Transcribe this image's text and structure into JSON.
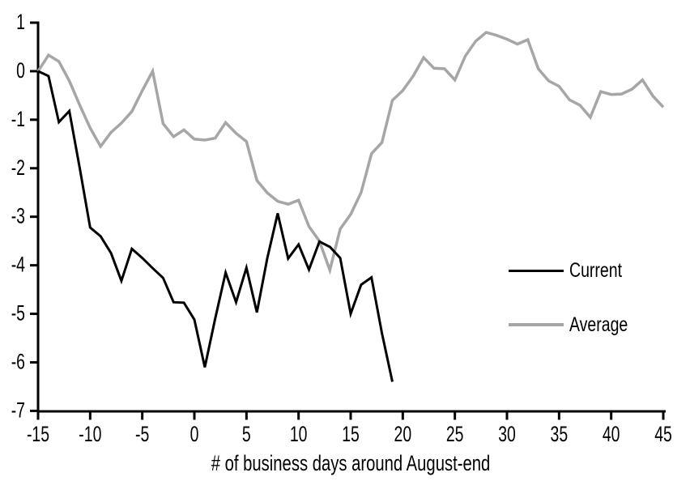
{
  "chart_data": {
    "type": "line",
    "title": "",
    "xlabel": "# of business days around August-end",
    "ylabel": "",
    "xlim": [
      -15,
      45
    ],
    "ylim": [
      -7,
      1
    ],
    "x_ticks": [
      -15,
      -10,
      -5,
      0,
      5,
      10,
      15,
      20,
      25,
      30,
      35,
      40,
      45
    ],
    "y_ticks": [
      1,
      0,
      -1,
      -2,
      -3,
      -4,
      -5,
      -6,
      -7
    ],
    "grid": false,
    "legend_position": "right-middle",
    "axis_color": "#000000",
    "series": [
      {
        "name": "Current",
        "color": "#000000",
        "x": [
          -15,
          -14,
          -13,
          -12,
          -11,
          -10,
          -9,
          -8,
          -7,
          -6,
          -5,
          -4,
          -3,
          -2,
          -1,
          0,
          1,
          2,
          3,
          4,
          5,
          6,
          7,
          8,
          9,
          10,
          11,
          12,
          13,
          14,
          15,
          16,
          17,
          18,
          19
        ],
        "values": [
          0,
          -0.1,
          -1.05,
          -0.82,
          -2,
          -3.22,
          -3.4,
          -3.75,
          -4.32,
          -3.66,
          -3.85,
          -4.06,
          -4.26,
          -4.76,
          -4.77,
          -5.12,
          -6.1,
          -5.1,
          -4.15,
          -4.76,
          -4.05,
          -4.97,
          -3.85,
          -2.93,
          -3.86,
          -3.57,
          -4.09,
          -3.51,
          -3.62,
          -3.85,
          -5,
          -4.4,
          -4.25,
          -5.4,
          -6.4
        ]
      },
      {
        "name": "Average",
        "color": "#a6a6a6",
        "x": [
          -15,
          -14,
          -13,
          -12,
          -11,
          -10,
          -9,
          -8,
          -7,
          -6,
          -5,
          -4,
          -3,
          -2,
          -1,
          0,
          1,
          2,
          3,
          4,
          5,
          6,
          7,
          8,
          9,
          10,
          11,
          12,
          13,
          14,
          15,
          16,
          17,
          18,
          19,
          20,
          21,
          22,
          23,
          24,
          25,
          26,
          27,
          28,
          29,
          30,
          31,
          32,
          33,
          34,
          35,
          36,
          37,
          38,
          39,
          40,
          41,
          42,
          43,
          44,
          45
        ],
        "values": [
          0,
          0.33,
          0.2,
          -0.2,
          -0.7,
          -1.17,
          -1.55,
          -1.26,
          -1.07,
          -0.83,
          -0.4,
          0,
          -1.08,
          -1.35,
          -1.21,
          -1.4,
          -1.42,
          -1.38,
          -1.06,
          -1.28,
          -1.45,
          -2.25,
          -2.51,
          -2.68,
          -2.74,
          -2.66,
          -3.2,
          -3.5,
          -4.1,
          -3.25,
          -2.95,
          -2.5,
          -1.7,
          -1.47,
          -0.6,
          -0.4,
          -0.1,
          0.28,
          0.06,
          0.05,
          -0.18,
          0.31,
          0.62,
          0.8,
          0.74,
          0.66,
          0.56,
          0.65,
          0.05,
          -0.2,
          -0.31,
          -0.59,
          -0.7,
          -0.95,
          -0.42,
          -0.48,
          -0.47,
          -0.37,
          -0.18,
          -0.51,
          -0.74
        ]
      }
    ]
  }
}
